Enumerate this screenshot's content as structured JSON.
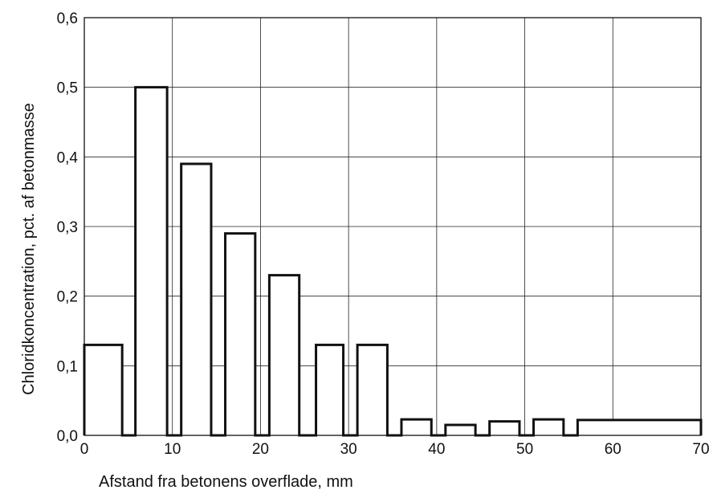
{
  "chart_data": {
    "type": "bar",
    "title": "",
    "xlabel": "Afstand fra betonens overflade, mm",
    "ylabel": "Chloridkoncentration, pct. af betonmasse",
    "xlim": [
      0,
      70
    ],
    "ylim": [
      0,
      0.6
    ],
    "grid": true,
    "x_ticks": [
      0,
      10,
      20,
      30,
      40,
      50,
      60,
      70
    ],
    "x_tick_labels": [
      "0",
      "10",
      "20",
      "30",
      "40",
      "50",
      "60",
      "70"
    ],
    "y_ticks": [
      0,
      0.1,
      0.2,
      0.3,
      0.4,
      0.5,
      0.6
    ],
    "y_tick_labels": [
      "0,0",
      "0,1",
      "0,2",
      "0,3",
      "0,4",
      "0,5",
      "0,6"
    ],
    "bars": [
      {
        "x_start": 0.0,
        "x_end": 4.3,
        "value": 0.13
      },
      {
        "x_start": 5.8,
        "x_end": 9.4,
        "value": 0.5
      },
      {
        "x_start": 11.0,
        "x_end": 14.4,
        "value": 0.39
      },
      {
        "x_start": 16.0,
        "x_end": 19.4,
        "value": 0.29
      },
      {
        "x_start": 21.0,
        "x_end": 24.4,
        "value": 0.23
      },
      {
        "x_start": 26.3,
        "x_end": 29.4,
        "value": 0.13
      },
      {
        "x_start": 31.0,
        "x_end": 34.4,
        "value": 0.13
      },
      {
        "x_start": 36.0,
        "x_end": 39.4,
        "value": 0.023
      },
      {
        "x_start": 41.0,
        "x_end": 44.4,
        "value": 0.015
      },
      {
        "x_start": 46.0,
        "x_end": 49.4,
        "value": 0.02
      },
      {
        "x_start": 51.0,
        "x_end": 54.4,
        "value": 0.023
      },
      {
        "x_start": 56.0,
        "x_end": 70.0,
        "value": 0.022
      }
    ]
  }
}
